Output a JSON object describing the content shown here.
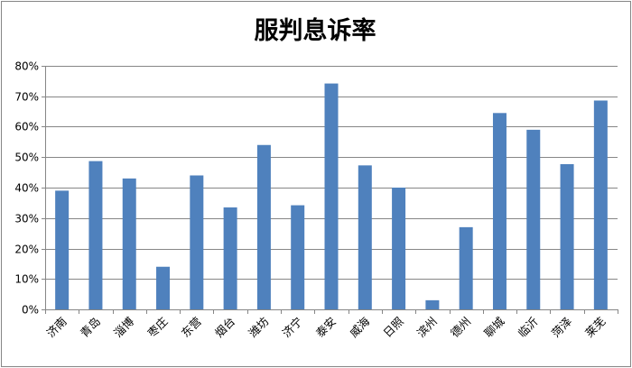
{
  "chart_data": {
    "type": "bar",
    "title": "服判息诉率",
    "xlabel": "",
    "ylabel": "",
    "categories": [
      "济南",
      "青岛",
      "淄博",
      "枣庄",
      "东营",
      "烟台",
      "潍坊",
      "济宁",
      "泰安",
      "威海",
      "日照",
      "滨州",
      "德州",
      "聊城",
      "临沂",
      "菏泽",
      "莱芜"
    ],
    "values": [
      0.39,
      0.487,
      0.43,
      0.14,
      0.44,
      0.335,
      0.54,
      0.342,
      0.742,
      0.473,
      0.4,
      0.03,
      0.27,
      0.645,
      0.59,
      0.477,
      0.686
    ],
    "yticks": [
      "0%",
      "10%",
      "20%",
      "30%",
      "40%",
      "50%",
      "60%",
      "70%",
      "80%"
    ],
    "ylim": [
      0,
      0.8
    ],
    "grid": true,
    "legend": "none",
    "bar_color": "#4F81BD",
    "grid_color": "#868686"
  }
}
